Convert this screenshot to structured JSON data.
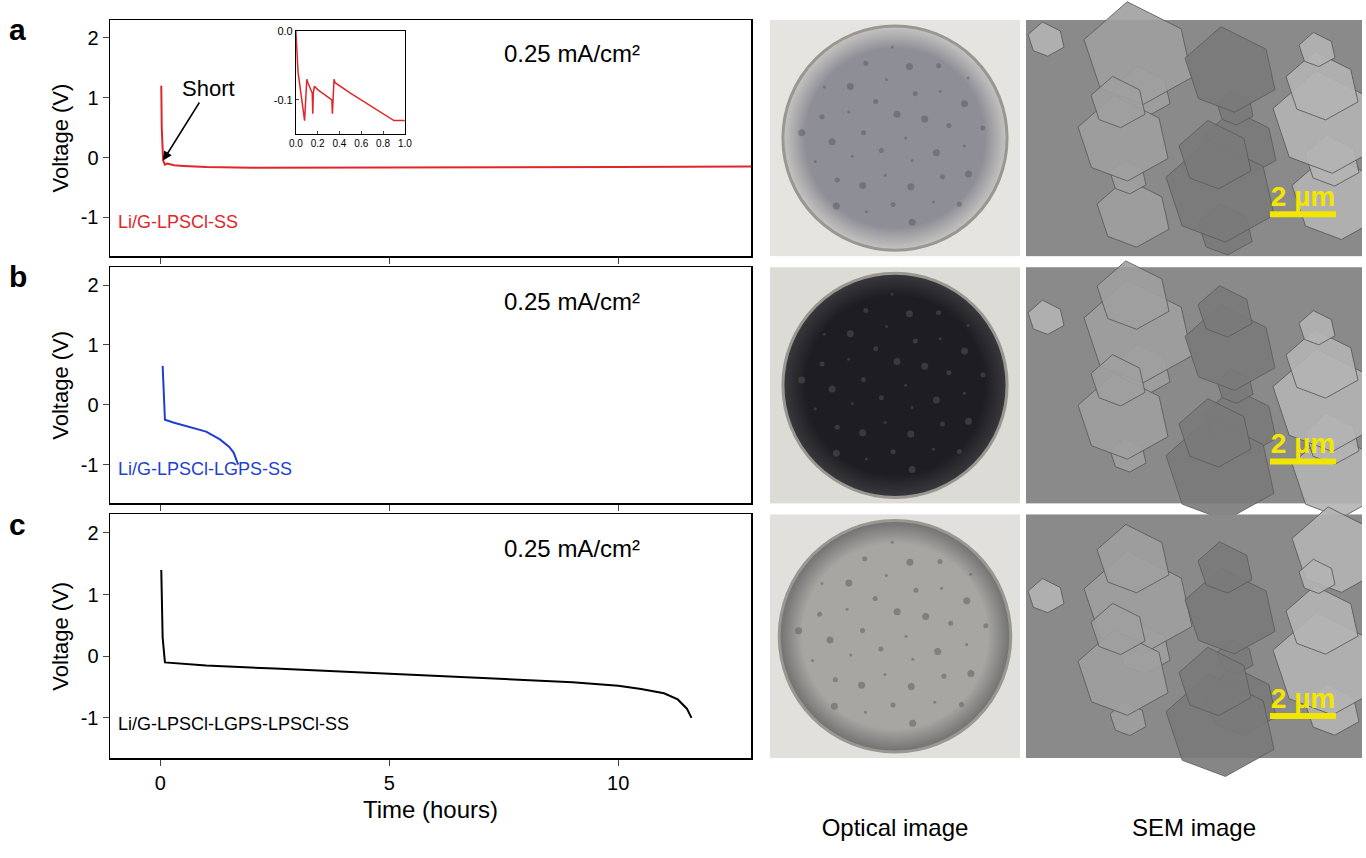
{
  "chart_data": [
    {
      "panel": "a",
      "type": "line",
      "color": "#e0262b",
      "x": [
        0.02,
        0.03,
        0.06,
        0.1,
        0.15,
        0.3,
        0.5,
        1,
        2,
        4,
        6,
        8,
        10,
        12.9
      ],
      "values": [
        1.2,
        0.5,
        -0.05,
        -0.12,
        -0.1,
        -0.13,
        -0.14,
        -0.16,
        -0.17,
        -0.17,
        -0.16,
        -0.16,
        -0.16,
        -0.15
      ],
      "xlim": [
        -1.1,
        12.9
      ],
      "ylim": [
        -1.65,
        2.3
      ],
      "xticks": [
        0,
        5,
        10
      ],
      "yticks": [
        -1,
        0,
        1,
        2
      ],
      "tick_labels": "y",
      "grid": false,
      "y_label": "Voltage (V)",
      "condition": "0.25 mA/cm²",
      "series_label": "Li/G-LPSCl-SS",
      "arrow_label": "Short",
      "inset": {
        "type": "line",
        "color": "#e0262b",
        "x": [
          0,
          0.02,
          0.08,
          0.1,
          0.11,
          0.15,
          0.155,
          0.16,
          0.17,
          0.2,
          0.33,
          0.335,
          0.35,
          0.36,
          0.5,
          0.7,
          0.9,
          1.0
        ],
        "values": [
          0,
          -0.06,
          -0.13,
          -0.07,
          -0.075,
          -0.09,
          -0.12,
          -0.09,
          -0.08,
          -0.085,
          -0.1,
          -0.12,
          -0.07,
          -0.075,
          -0.09,
          -0.11,
          -0.13,
          -0.13
        ],
        "xlim": [
          0,
          1
        ],
        "ylim": [
          -0.15,
          0
        ],
        "xticks": [
          {
            "value": 0,
            "label": "0.0"
          },
          {
            "value": 0.2,
            "label": "0.2"
          },
          {
            "value": 0.4,
            "label": "0.4"
          },
          {
            "value": 0.6,
            "label": "0.6"
          },
          {
            "value": 0.8,
            "label": "0.8"
          },
          {
            "value": 1,
            "label": "1.0"
          }
        ],
        "yticks": [
          {
            "value": 0,
            "label": "0.0"
          },
          -0.1
        ]
      }
    },
    {
      "panel": "b",
      "type": "line",
      "color": "#1f3fd1",
      "x": [
        0.05,
        0.08,
        0.1,
        0.3,
        0.6,
        1.0,
        1.3,
        1.5,
        1.6,
        1.7
      ],
      "values": [
        0.65,
        0.1,
        -0.25,
        -0.3,
        -0.37,
        -0.45,
        -0.58,
        -0.7,
        -0.8,
        -1.0
      ],
      "xlim": [
        -1.1,
        12.9
      ],
      "ylim": [
        -1.65,
        2.3
      ],
      "xticks": [
        0,
        5,
        10
      ],
      "yticks": [
        -1,
        0,
        1,
        2
      ],
      "tick_labels": "y",
      "grid": false,
      "y_label": "Voltage (V)",
      "condition": "0.25 mA/cm²",
      "series_label": "Li/G-LPSCl-LGPS-SS"
    },
    {
      "panel": "c",
      "type": "line",
      "color": "#000000",
      "x": [
        0.02,
        0.05,
        0.1,
        1,
        2.5,
        4,
        5.5,
        7,
        8,
        9,
        10,
        10.5,
        11,
        11.3,
        11.5,
        11.6
      ],
      "values": [
        1.4,
        0.3,
        -0.1,
        -0.15,
        -0.2,
        -0.25,
        -0.3,
        -0.35,
        -0.38,
        -0.42,
        -0.48,
        -0.53,
        -0.6,
        -0.7,
        -0.85,
        -1.0
      ],
      "xlim": [
        -1.1,
        12.9
      ],
      "ylim": [
        -1.65,
        2.3
      ],
      "xticks": [
        0,
        5,
        10
      ],
      "yticks": [
        -1,
        0,
        1,
        2
      ],
      "tick_labels": true,
      "grid": false,
      "x_label": "Time (hours)",
      "y_label": "Voltage (V)",
      "condition": "0.25 mA/cm²",
      "series_label": "Li/G-LPSCl-LGPS-LPSCl-SS"
    }
  ],
  "image_panels": {
    "optical_label": "Optical image",
    "sem_label": "SEM image",
    "scale_bar": "2 µm"
  }
}
